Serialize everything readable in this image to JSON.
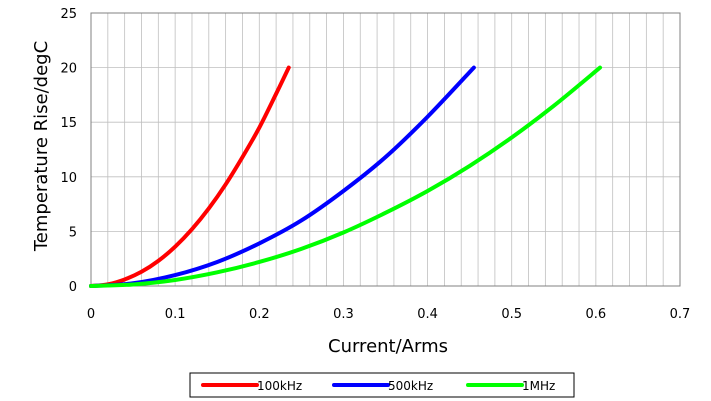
{
  "chart_data": {
    "type": "line",
    "title_fragment": "",
    "xlabel": "Current/Arms",
    "ylabel": "Temperature Rise/degC",
    "xlim": [
      0,
      0.7
    ],
    "ylim": [
      0,
      25
    ],
    "x_ticks": [
      "0",
      "0.1",
      "0.2",
      "0.3",
      "0.4",
      "0.5",
      "0.6",
      "0.7"
    ],
    "y_ticks": [
      "0",
      "5",
      "10",
      "15",
      "20",
      "25"
    ],
    "grid": true,
    "legend_position": "bottom",
    "series": [
      {
        "name": "100kHz",
        "color": "#ff0000",
        "x": [
          0,
          0.02,
          0.04,
          0.06,
          0.08,
          0.1,
          0.12,
          0.14,
          0.16,
          0.18,
          0.2,
          0.22,
          0.235
        ],
        "y": [
          0,
          0.15,
          0.6,
          1.3,
          2.3,
          3.6,
          5.2,
          7.1,
          9.3,
          11.8,
          14.5,
          17.6,
          20
        ]
      },
      {
        "name": "500kHz",
        "color": "#0000ff",
        "x": [
          0,
          0.05,
          0.1,
          0.15,
          0.2,
          0.25,
          0.3,
          0.35,
          0.4,
          0.455
        ],
        "y": [
          0,
          0.25,
          1.0,
          2.2,
          3.9,
          6.0,
          8.7,
          11.8,
          15.5,
          20
        ]
      },
      {
        "name": "1MHz",
        "color": "#00ff00",
        "x": [
          0,
          0.05,
          0.1,
          0.15,
          0.2,
          0.25,
          0.3,
          0.35,
          0.4,
          0.45,
          0.5,
          0.55,
          0.605
        ],
        "y": [
          0,
          0.14,
          0.55,
          1.25,
          2.2,
          3.4,
          4.9,
          6.7,
          8.7,
          11.0,
          13.6,
          16.5,
          20
        ]
      }
    ]
  }
}
